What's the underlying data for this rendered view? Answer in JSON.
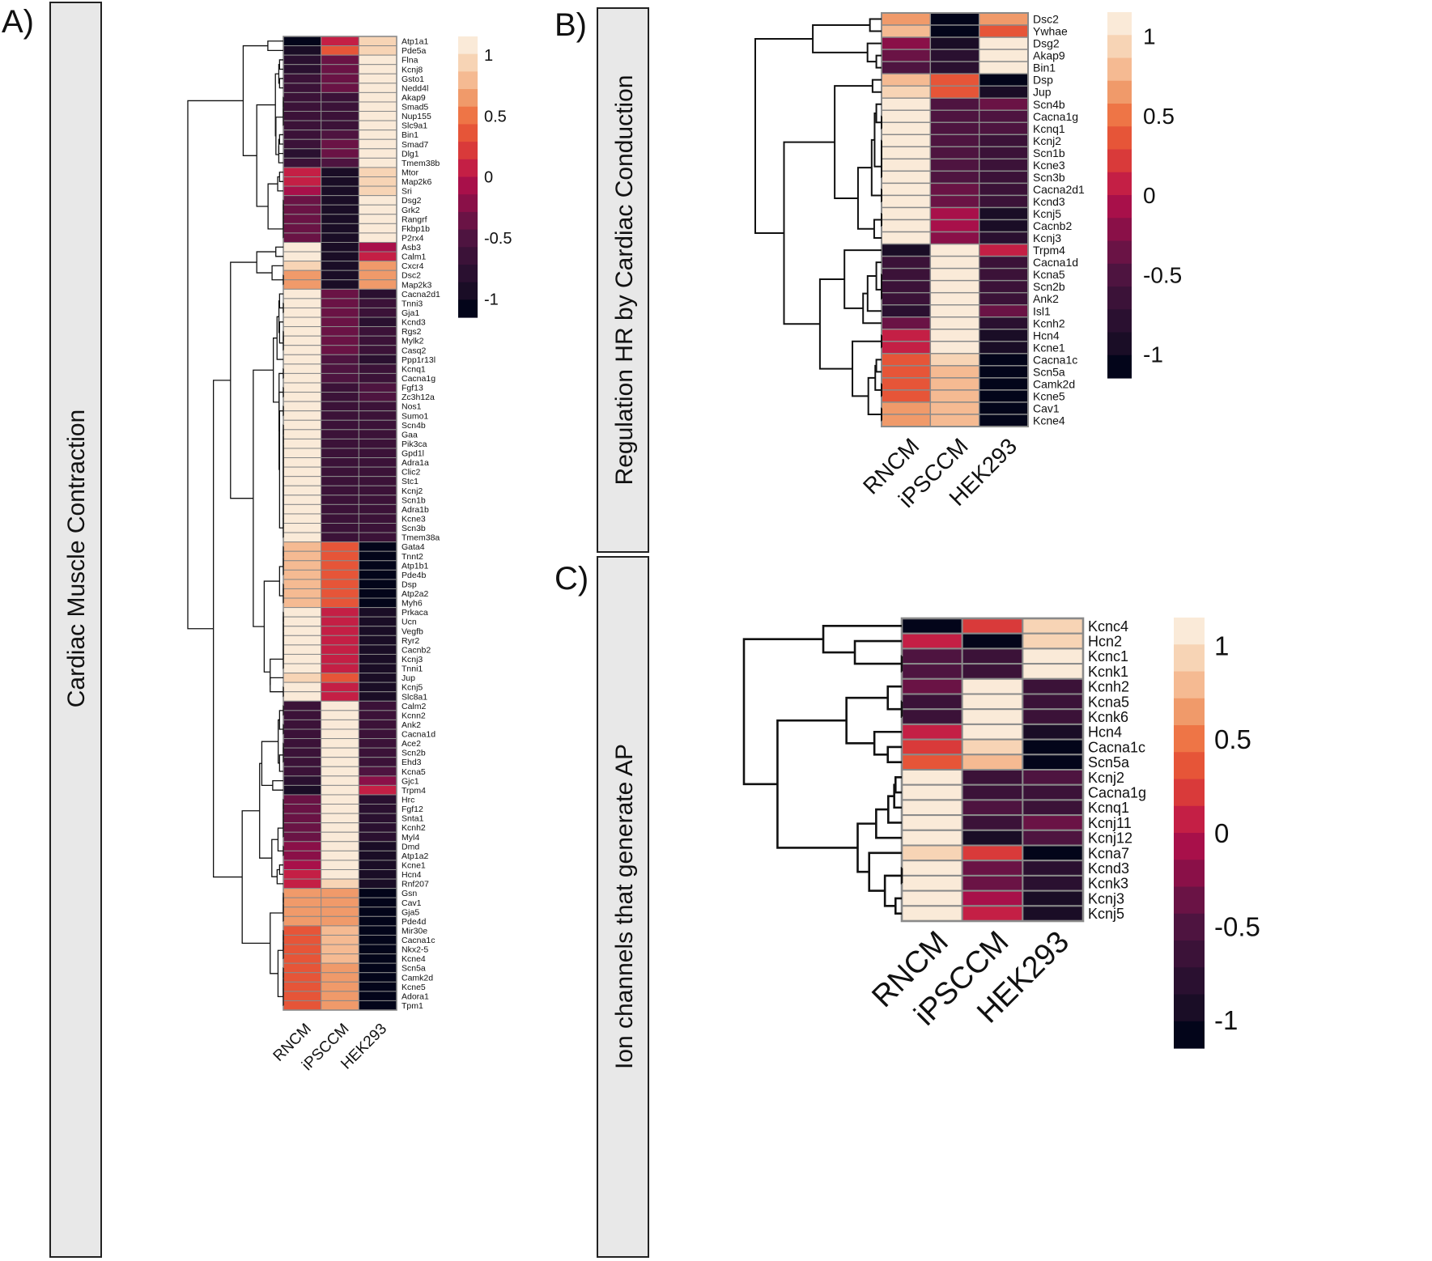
{
  "panels": {
    "a": {
      "letter": "A)",
      "band_title": "Cardiac Muscle Contraction"
    },
    "b": {
      "letter": "B)",
      "band_title": "Regulation HR by Cardiac Conduction"
    },
    "c": {
      "letter": "C)",
      "band_title": "Ion channels that generate AP"
    }
  },
  "colors": {
    "scale": [
      "#03051a",
      "#1a0d26",
      "#2a1030",
      "#3b1238",
      "#4e1440",
      "#6a1345",
      "#8a1048",
      "#a8104a",
      "#c41f45",
      "#d93a3a",
      "#e65538",
      "#ee7546",
      "#f09a6a",
      "#f5ba92",
      "#f7d4b5",
      "#faead8"
    ]
  },
  "chart_data": [
    {
      "type": "heatmap",
      "title": "Cardiac Muscle Contraction",
      "columns": [
        "RNCM",
        "iPSCCM",
        "HEK293"
      ],
      "legend_ticks": [
        "1",
        "0.5",
        "0",
        "-0.5",
        "-1"
      ],
      "legend_range": [
        -1.15,
        1.15
      ],
      "rows": [
        "Atp1a1",
        "Pde5a",
        "Flna",
        "Kcnj8",
        "Gsto1",
        "Nedd4l",
        "Akap9",
        "Smad5",
        "Nup155",
        "Slc9a1",
        "Bin1",
        "Smad7",
        "Dlg1",
        "Tmem38b",
        "Mtor",
        "Map2k6",
        "Sri",
        "Dsg2",
        "Grk2",
        "Rangrf",
        "Fkbp1b",
        "P2rx4",
        "Asb3",
        "Calm1",
        "Cxcr4",
        "Dsc2",
        "Map2k3",
        "Cacna2d1",
        "Tnni3",
        "Gja1",
        "Kcnd3",
        "Rgs2",
        "Mylk2",
        "Casq2",
        "Ppp1r13l",
        "Kcnq1",
        "Cacna1g",
        "Fgf13",
        "Zc3h12a",
        "Nos1",
        "Sumo1",
        "Scn4b",
        "Gaa",
        "Pik3ca",
        "Gpd1l",
        "Adra1a",
        "Clic2",
        "Stc1",
        "Kcnj2",
        "Scn1b",
        "Adra1b",
        "Kcne3",
        "Scn3b",
        "Tmem38a",
        "Gata4",
        "Tnnt2",
        "Atp1b1",
        "Pde4b",
        "Dsp",
        "Atp2a2",
        "Myh6",
        "Prkaca",
        "Ucn",
        "Vegfb",
        "Ryr2",
        "Cacnb2",
        "Kcnj3",
        "Tnni1",
        "Jup",
        "Kcnj5",
        "Slc8a1",
        "Calm2",
        "Kcnn2",
        "Ank2",
        "Cacna1d",
        "Ace2",
        "Scn2b",
        "Ehd3",
        "Kcna5",
        "Gjc1",
        "Trpm4",
        "Hrc",
        "Fgf12",
        "Snta1",
        "Kcnh2",
        "Myl4",
        "Dmd",
        "Atp1a2",
        "Kcne1",
        "Hcn4",
        "Rnf207",
        "Gsn",
        "Cav1",
        "Gja5",
        "Pde4d",
        "Mir30e",
        "Cacna1c",
        "Nkx2-5",
        "Kcne4",
        "Scn5a",
        "Camk2d",
        "Kcne5",
        "Adora1",
        "Tpm1"
      ],
      "values": [
        [
          -1.1,
          0.0,
          0.9
        ],
        [
          -1.0,
          0.4,
          0.9
        ],
        [
          -0.8,
          -0.3,
          1.15
        ],
        [
          -0.8,
          -0.4,
          1.15
        ],
        [
          -0.7,
          -0.3,
          1.15
        ],
        [
          -0.7,
          -0.4,
          1.15
        ],
        [
          -0.6,
          -0.6,
          1.15
        ],
        [
          -0.6,
          -0.6,
          1.15
        ],
        [
          -0.6,
          -0.6,
          1.15
        ],
        [
          -0.6,
          -0.6,
          1.15
        ],
        [
          -0.7,
          -0.5,
          1.15
        ],
        [
          -0.7,
          -0.4,
          1.15
        ],
        [
          -0.8,
          -0.4,
          1.15
        ],
        [
          -0.7,
          -0.5,
          1.15
        ],
        [
          0.1,
          -1.0,
          0.9
        ],
        [
          0.0,
          -1.0,
          0.9
        ],
        [
          -0.1,
          -1.0,
          0.9
        ],
        [
          -0.3,
          -0.9,
          1.15
        ],
        [
          -0.3,
          -0.9,
          1.15
        ],
        [
          -0.3,
          -0.9,
          1.15
        ],
        [
          -0.3,
          -0.9,
          1.15
        ],
        [
          -0.3,
          -0.9,
          1.15
        ],
        [
          1.15,
          -1.0,
          -0.1
        ],
        [
          1.15,
          -1.0,
          0.1
        ],
        [
          1.0,
          -1.0,
          0.6
        ],
        [
          0.7,
          -1.0,
          0.6
        ],
        [
          0.7,
          -1.0,
          0.6
        ],
        [
          1.15,
          -0.3,
          -0.8
        ],
        [
          1.15,
          -0.3,
          -0.7
        ],
        [
          1.15,
          -0.3,
          -0.7
        ],
        [
          1.15,
          -0.4,
          -0.8
        ],
        [
          1.15,
          -0.4,
          -0.7
        ],
        [
          1.15,
          -0.4,
          -0.7
        ],
        [
          1.15,
          -0.4,
          -0.7
        ],
        [
          1.15,
          -0.5,
          -0.8
        ],
        [
          1.15,
          -0.5,
          -0.6
        ],
        [
          1.15,
          -0.5,
          -0.6
        ],
        [
          1.15,
          -0.6,
          -0.5
        ],
        [
          1.15,
          -0.6,
          -0.5
        ],
        [
          1.15,
          -0.6,
          -0.7
        ],
        [
          1.15,
          -0.6,
          -0.7
        ],
        [
          1.15,
          -0.6,
          -0.6
        ],
        [
          1.15,
          -0.6,
          -0.6
        ],
        [
          1.15,
          -0.6,
          -0.6
        ],
        [
          1.15,
          -0.6,
          -0.6
        ],
        [
          1.15,
          -0.6,
          -0.6
        ],
        [
          1.15,
          -0.6,
          -0.6
        ],
        [
          1.15,
          -0.6,
          -0.6
        ],
        [
          1.15,
          -0.6,
          -0.6
        ],
        [
          1.15,
          -0.6,
          -0.6
        ],
        [
          1.15,
          -0.6,
          -0.6
        ],
        [
          1.15,
          -0.6,
          -0.6
        ],
        [
          1.15,
          -0.6,
          -0.6
        ],
        [
          1.15,
          -0.6,
          -0.6
        ],
        [
          0.8,
          0.4,
          -1.1
        ],
        [
          0.8,
          0.4,
          -1.1
        ],
        [
          0.8,
          0.4,
          -1.1
        ],
        [
          0.8,
          0.4,
          -1.1
        ],
        [
          0.8,
          0.3,
          -1.1
        ],
        [
          0.8,
          0.3,
          -1.1
        ],
        [
          0.8,
          0.3,
          -1.1
        ],
        [
          1.15,
          0.0,
          -0.9
        ],
        [
          1.15,
          0.0,
          -0.9
        ],
        [
          1.15,
          0.0,
          -0.9
        ],
        [
          1.15,
          0.0,
          -0.9
        ],
        [
          1.15,
          0.0,
          -0.9
        ],
        [
          1.15,
          0.0,
          -0.9
        ],
        [
          1.15,
          0.0,
          -0.9
        ],
        [
          1.0,
          0.3,
          -1.0
        ],
        [
          1.15,
          0.0,
          -0.9
        ],
        [
          1.15,
          0.0,
          -0.9
        ],
        [
          -0.6,
          1.15,
          -0.7
        ],
        [
          -0.6,
          1.15,
          -0.7
        ],
        [
          -0.6,
          1.15,
          -0.6
        ],
        [
          -0.6,
          1.15,
          -0.6
        ],
        [
          -0.7,
          1.15,
          -0.6
        ],
        [
          -0.7,
          1.15,
          -0.6
        ],
        [
          -0.7,
          1.15,
          -0.6
        ],
        [
          -0.7,
          1.15,
          -0.5
        ],
        [
          -0.8,
          1.15,
          -0.2
        ],
        [
          -1.0,
          1.15,
          0.0
        ],
        [
          -0.3,
          1.15,
          -0.8
        ],
        [
          -0.3,
          1.15,
          -0.8
        ],
        [
          -0.3,
          1.15,
          -0.8
        ],
        [
          -0.3,
          1.15,
          -0.8
        ],
        [
          -0.3,
          1.15,
          -0.8
        ],
        [
          -0.2,
          1.15,
          -0.9
        ],
        [
          -0.2,
          1.15,
          -0.9
        ],
        [
          -0.1,
          1.15,
          -1.0
        ],
        [
          0.0,
          1.15,
          -1.0
        ],
        [
          0.0,
          1.0,
          -1.0
        ],
        [
          0.7,
          0.7,
          -1.1
        ],
        [
          0.7,
          0.7,
          -1.1
        ],
        [
          0.7,
          0.7,
          -1.1
        ],
        [
          0.7,
          0.7,
          -1.1
        ],
        [
          0.3,
          0.8,
          -1.1
        ],
        [
          0.3,
          0.8,
          -1.1
        ],
        [
          0.3,
          0.8,
          -1.1
        ],
        [
          0.3,
          0.8,
          -1.1
        ],
        [
          0.4,
          0.7,
          -1.1
        ],
        [
          0.4,
          0.7,
          -1.1
        ],
        [
          0.4,
          0.7,
          -1.1
        ],
        [
          0.4,
          0.7,
          -1.1
        ],
        [
          0.4,
          0.7,
          -1.1
        ]
      ]
    },
    {
      "type": "heatmap",
      "title": "Regulation HR by Cardiac Conduction",
      "columns": [
        "RNCM",
        "iPSCCM",
        "HEK293"
      ],
      "legend_ticks": [
        "1",
        "0.5",
        "0",
        "-0.5",
        "-1"
      ],
      "legend_range": [
        -1.15,
        1.15
      ],
      "rows": [
        "Dsc2",
        "Ywhae",
        "Dsg2",
        "Akap9",
        "Bin1",
        "Dsp",
        "Jup",
        "Scn4b",
        "Cacna1g",
        "Kcnq1",
        "Kcnj2",
        "Scn1b",
        "Kcne3",
        "Scn3b",
        "Cacna2d1",
        "Kcnd3",
        "Kcnj5",
        "Cacnb2",
        "Kcnj3",
        "Trpm4",
        "Cacna1d",
        "Kcna5",
        "Scn2b",
        "Ank2",
        "Isl1",
        "Kcnh2",
        "Hcn4",
        "Kcne1",
        "Cacna1c",
        "Scn5a",
        "Camk2d",
        "Kcne5",
        "Cav1",
        "Kcne4"
      ],
      "values": [
        [
          0.7,
          -1.1,
          0.6
        ],
        [
          0.8,
          -1.1,
          0.4
        ],
        [
          -0.2,
          -0.9,
          1.15
        ],
        [
          -0.4,
          -0.8,
          1.15
        ],
        [
          -0.5,
          -0.8,
          1.15
        ],
        [
          0.8,
          0.4,
          -1.1
        ],
        [
          0.9,
          0.3,
          -1.0
        ],
        [
          1.15,
          -0.5,
          -0.4
        ],
        [
          1.15,
          -0.5,
          -0.5
        ],
        [
          1.15,
          -0.5,
          -0.5
        ],
        [
          1.15,
          -0.5,
          -0.6
        ],
        [
          1.15,
          -0.5,
          -0.6
        ],
        [
          1.15,
          -0.5,
          -0.6
        ],
        [
          1.15,
          -0.5,
          -0.6
        ],
        [
          1.15,
          -0.4,
          -0.7
        ],
        [
          1.15,
          -0.4,
          -0.7
        ],
        [
          1.15,
          -0.1,
          -0.9
        ],
        [
          1.15,
          -0.1,
          -0.9
        ],
        [
          1.15,
          -0.2,
          -0.8
        ],
        [
          -1.0,
          1.15,
          0.0
        ],
        [
          -0.7,
          1.15,
          -0.6
        ],
        [
          -0.6,
          1.15,
          -0.6
        ],
        [
          -0.6,
          1.15,
          -0.6
        ],
        [
          -0.6,
          1.15,
          -0.6
        ],
        [
          -0.8,
          1.15,
          -0.4
        ],
        [
          -0.4,
          1.15,
          -0.8
        ],
        [
          0.0,
          1.15,
          -1.0
        ],
        [
          0.0,
          1.15,
          -1.0
        ],
        [
          0.3,
          0.9,
          -1.1
        ],
        [
          0.3,
          0.8,
          -1.1
        ],
        [
          0.4,
          0.8,
          -1.1
        ],
        [
          0.4,
          0.8,
          -1.1
        ],
        [
          0.6,
          0.8,
          -1.1
        ],
        [
          0.6,
          0.8,
          -1.1
        ]
      ]
    },
    {
      "type": "heatmap",
      "title": "Ion channels that generate AP",
      "columns": [
        "RNCM",
        "iPSCCM",
        "HEK293"
      ],
      "legend_ticks": [
        "1",
        "0.5",
        "0",
        "-0.5",
        "-1"
      ],
      "legend_range": [
        -1.15,
        1.15
      ],
      "rows": [
        "Kcnc4",
        "Hcn2",
        "Kcnc1",
        "Kcnk1",
        "Kcnh2",
        "Kcna5",
        "Kcnk6",
        "Hcn4",
        "Cacna1c",
        "Scn5a",
        "Kcnj2",
        "Cacna1g",
        "Kcnq1",
        "Kcnj11",
        "Kcnj12",
        "Kcna7",
        "Kcnd3",
        "Kcnk3",
        "Kcnj3",
        "Kcnj5"
      ],
      "values": [
        [
          -1.1,
          0.2,
          0.9
        ],
        [
          0.0,
          -1.1,
          0.9
        ],
        [
          -0.5,
          -0.6,
          1.15
        ],
        [
          -0.5,
          -0.6,
          1.15
        ],
        [
          -0.4,
          1.15,
          -0.7
        ],
        [
          -0.6,
          1.15,
          -0.6
        ],
        [
          -0.6,
          1.15,
          -0.6
        ],
        [
          0.0,
          1.15,
          -1.0
        ],
        [
          0.2,
          0.9,
          -1.1
        ],
        [
          0.4,
          0.8,
          -1.1
        ],
        [
          1.15,
          -0.6,
          -0.5
        ],
        [
          1.15,
          -0.6,
          -0.6
        ],
        [
          1.15,
          -0.5,
          -0.6
        ],
        [
          1.15,
          -0.7,
          -0.4
        ],
        [
          1.15,
          -1.0,
          -0.5
        ],
        [
          0.9,
          0.2,
          -1.1
        ],
        [
          1.15,
          -0.3,
          -0.8
        ],
        [
          1.15,
          -0.3,
          -0.8
        ],
        [
          1.15,
          -0.1,
          -0.9
        ],
        [
          1.15,
          0.0,
          -0.9
        ]
      ]
    }
  ]
}
